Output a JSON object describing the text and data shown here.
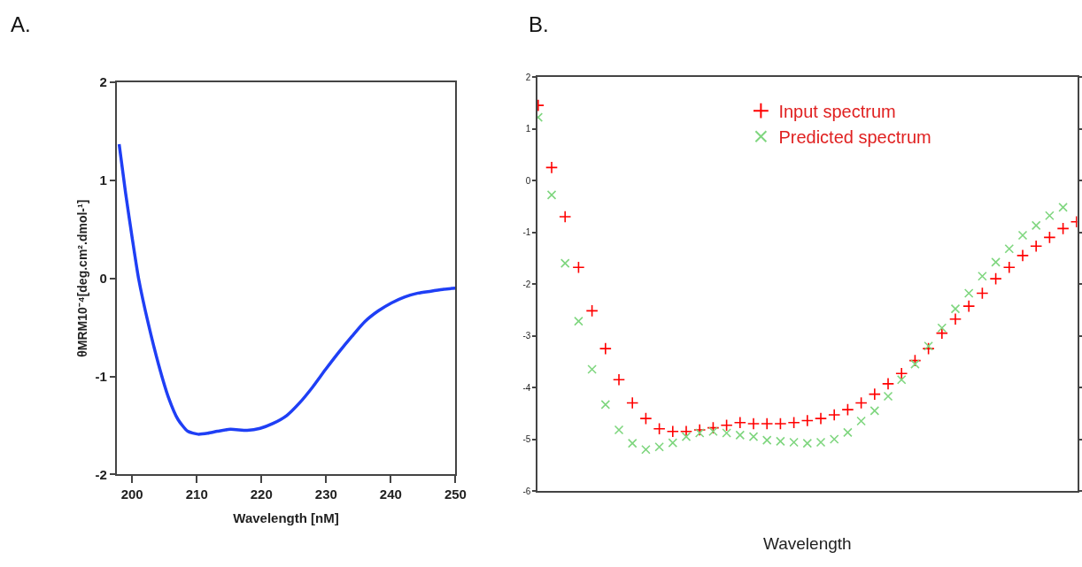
{
  "chart_data": [
    {
      "type": "line",
      "xlabel": "Wavelength [nM]",
      "ylabel": "θMRM10⁻⁴[deg.cm².dmol-¹]",
      "annotations": [
        "A."
      ],
      "xlim": [
        197.6,
        250
      ],
      "xticks": [
        200,
        210,
        220,
        230,
        240,
        250
      ],
      "ylim": [
        -2,
        2
      ],
      "yticks": [
        -2,
        -1,
        0,
        1,
        2
      ],
      "legend": false,
      "line_style": "solid",
      "marker": "none",
      "series": [
        {
          "color": "#1f3ff5",
          "x": [
            198.0,
            199.0,
            200.0,
            201.0,
            202.5,
            204.1,
            205.6,
            207.1,
            208.6,
            210.2,
            211.7,
            213.2,
            215.2,
            217.8,
            219.8,
            221.8,
            223.9,
            225.9,
            227.9,
            229.9,
            232.0,
            234.0,
            236.0,
            238.1,
            240.1,
            242.1,
            244.2,
            246.2,
            248.2,
            250.0
          ],
          "values": [
            1.37,
            0.87,
            0.42,
            0.0,
            -0.46,
            -0.88,
            -1.21,
            -1.44,
            -1.56,
            -1.59,
            -1.58,
            -1.56,
            -1.54,
            -1.55,
            -1.53,
            -1.48,
            -1.4,
            -1.27,
            -1.11,
            -0.93,
            -0.75,
            -0.59,
            -0.44,
            -0.33,
            -0.25,
            -0.19,
            -0.15,
            -0.13,
            -0.11,
            -0.1
          ]
        }
      ]
    },
    {
      "type": "scatter",
      "xlabel": "Wavelength",
      "annotations": [
        "B."
      ],
      "tick_labels": "y",
      "categories": [
        null,
        null,
        null,
        null,
        null,
        null,
        null,
        null,
        null,
        null,
        null,
        null,
        null,
        null,
        null,
        null,
        null,
        null,
        null,
        null,
        null,
        null,
        null,
        null,
        null,
        null,
        null,
        null,
        null,
        null,
        null,
        null,
        null,
        null,
        null,
        null,
        null,
        null,
        null,
        null,
        null
      ],
      "ylim": [
        -6,
        2
      ],
      "yticks": [
        -6,
        -5,
        -4,
        -3,
        -2,
        -1,
        0,
        1,
        2
      ],
      "legend": "top",
      "series": [
        {
          "name": "Input spectrum",
          "color": "#ff0000",
          "marker": "cross",
          "values": [
            1.45,
            0.25,
            -0.7,
            -1.68,
            -2.52,
            -3.25,
            -3.85,
            -4.3,
            -4.6,
            -4.8,
            -4.85,
            -4.85,
            -4.82,
            -4.78,
            -4.73,
            -4.68,
            -4.7,
            -4.7,
            -4.7,
            -4.68,
            -4.64,
            -4.6,
            -4.53,
            -4.43,
            -4.3,
            -4.13,
            -3.93,
            -3.73,
            -3.48,
            -3.25,
            -2.95,
            -2.68,
            -2.43,
            -2.18,
            -1.9,
            -1.68,
            -1.45,
            -1.27,
            -1.1,
            -0.93,
            -0.8
          ]
        },
        {
          "name": "Predicted spectrum",
          "color": "#7fd67f",
          "marker": "x",
          "values": [
            1.22,
            -0.28,
            -1.6,
            -2.72,
            -3.65,
            -4.33,
            -4.82,
            -5.08,
            -5.2,
            -5.15,
            -5.07,
            -4.95,
            -4.88,
            -4.85,
            -4.88,
            -4.92,
            -4.95,
            -5.02,
            -5.04,
            -5.06,
            -5.08,
            -5.06,
            -5.0,
            -4.87,
            -4.65,
            -4.45,
            -4.17,
            -3.85,
            -3.55,
            -3.2,
            -2.85,
            -2.48,
            -2.18,
            -1.85,
            -1.58,
            -1.32,
            -1.06,
            -0.87,
            -0.68,
            -0.52,
            null
          ]
        }
      ]
    }
  ]
}
